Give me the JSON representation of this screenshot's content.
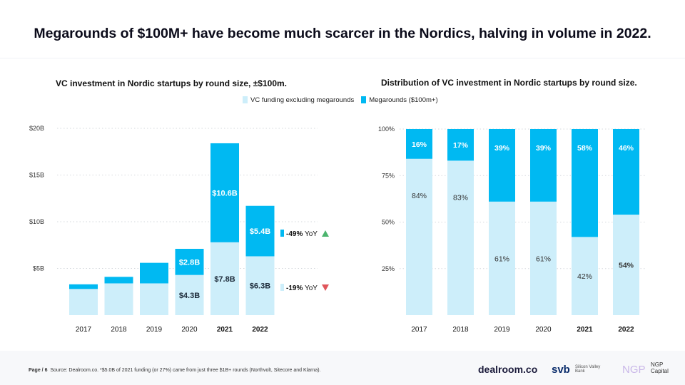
{
  "title": "Megarounds of $100M+ have become much scarcer in the Nordics, halving in volume in 2022.",
  "colors": {
    "light": "#cdeefa",
    "dark": "#00b9f2",
    "up": "#4cb46e",
    "down": "#e0565b"
  },
  "legend": {
    "light": "VC funding  excluding megarounds",
    "dark": "Megarounds ($100m+)"
  },
  "chart_data": [
    {
      "type": "bar",
      "stacked": true,
      "title": "VC investment in Nordic startups by round size, ±$100m.",
      "categories": [
        "2017",
        "2018",
        "2019",
        "2020",
        "2021",
        "2022"
      ],
      "bold_categories": [
        "2021",
        "2022"
      ],
      "series": [
        {
          "name": "VC funding  excluding megarounds",
          "values": [
            2.8,
            3.4,
            3.4,
            4.3,
            7.8,
            6.3
          ],
          "labels": [
            "",
            "",
            "",
            "$4.3B",
            "$7.8B",
            "$6.3B"
          ]
        },
        {
          "name": "Megarounds ($100m+)",
          "values": [
            0.5,
            0.7,
            2.2,
            2.8,
            10.6,
            5.4
          ],
          "labels": [
            "",
            "",
            "",
            "$2.8B",
            "$10.6B",
            "$5.4B"
          ]
        }
      ],
      "yticks": [
        {
          "v": 5,
          "label": "$5B"
        },
        {
          "v": 10,
          "label": "$10B"
        },
        {
          "v": 15,
          "label": "$15B"
        },
        {
          "v": 20,
          "label": "$20B"
        }
      ],
      "ylim": [
        0,
        20
      ],
      "annotations": [
        {
          "series": "Megarounds ($100m+)",
          "pct": "-49%",
          "suffix": "YoY",
          "arrow": "up"
        },
        {
          "series": "VC funding  excluding megarounds",
          "pct": "-19%",
          "suffix": "YoY",
          "arrow": "down"
        }
      ]
    },
    {
      "type": "bar",
      "stacked": true,
      "percent": true,
      "title": "Distribution of VC investment in Nordic startups by round size.",
      "categories": [
        "2017",
        "2018",
        "2019",
        "2020",
        "2021",
        "2022"
      ],
      "bold_categories": [
        "2021",
        "2022"
      ],
      "series": [
        {
          "name": "VC funding  excluding megarounds",
          "values": [
            84,
            83,
            61,
            61,
            42,
            54
          ],
          "labels": [
            "84%",
            "83%",
            "61%",
            "61%",
            "42%",
            "54%"
          ]
        },
        {
          "name": "Megarounds ($100m+)",
          "values": [
            16,
            17,
            39,
            39,
            58,
            46
          ],
          "labels": [
            "16%",
            "17%",
            "39%",
            "39%",
            "58%",
            "46%"
          ]
        }
      ],
      "yticks": [
        {
          "v": 25,
          "label": "25%"
        },
        {
          "v": 50,
          "label": "50%"
        },
        {
          "v": 75,
          "label": "75%"
        },
        {
          "v": 100,
          "label": "100%"
        }
      ],
      "ylim": [
        0,
        100
      ]
    }
  ],
  "footer": {
    "page": "Page / 6",
    "source": "Source: Dealroom.co. *$5.0B of 2021 funding (or 27%) came from just three $1B+ rounds (Northvolt, Sitecore and Klarna).",
    "logos": {
      "dealroom": "dealroom.co",
      "svb": "svb",
      "svb_sub": "Silicon Valley Bank",
      "ngp": "NGP",
      "ngp_sub": "NGP Capital"
    }
  }
}
